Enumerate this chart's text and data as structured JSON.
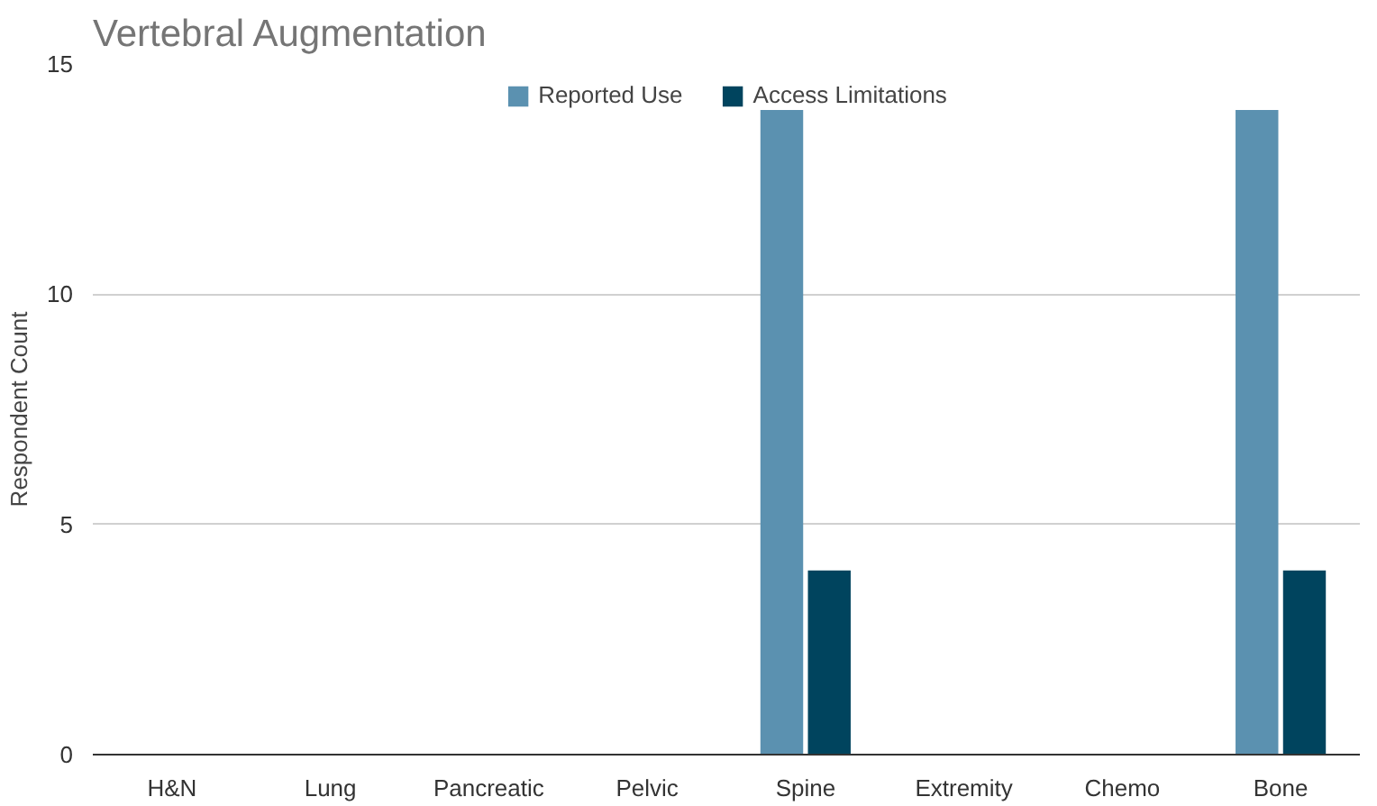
{
  "chart_data": {
    "type": "bar",
    "title": "Vertebral Augmentation",
    "ylabel": "Respondent Count",
    "categories": [
      "H&N",
      "Lung",
      "Pancreatic",
      "Pelvic",
      "Spine",
      "Extremity",
      "Chemo",
      "Bone"
    ],
    "series": [
      {
        "name": "Reported Use",
        "color": "#5b91b0",
        "values": [
          0,
          0,
          0,
          0,
          14,
          0,
          0,
          14
        ]
      },
      {
        "name": "Access Limitations",
        "color": "#00445e",
        "values": [
          0,
          0,
          0,
          0,
          4,
          0,
          0,
          4
        ]
      }
    ],
    "ylim": [
      0,
      15
    ],
    "yticks": [
      0,
      5,
      10,
      15
    ],
    "grid": "y",
    "legend": "top"
  }
}
